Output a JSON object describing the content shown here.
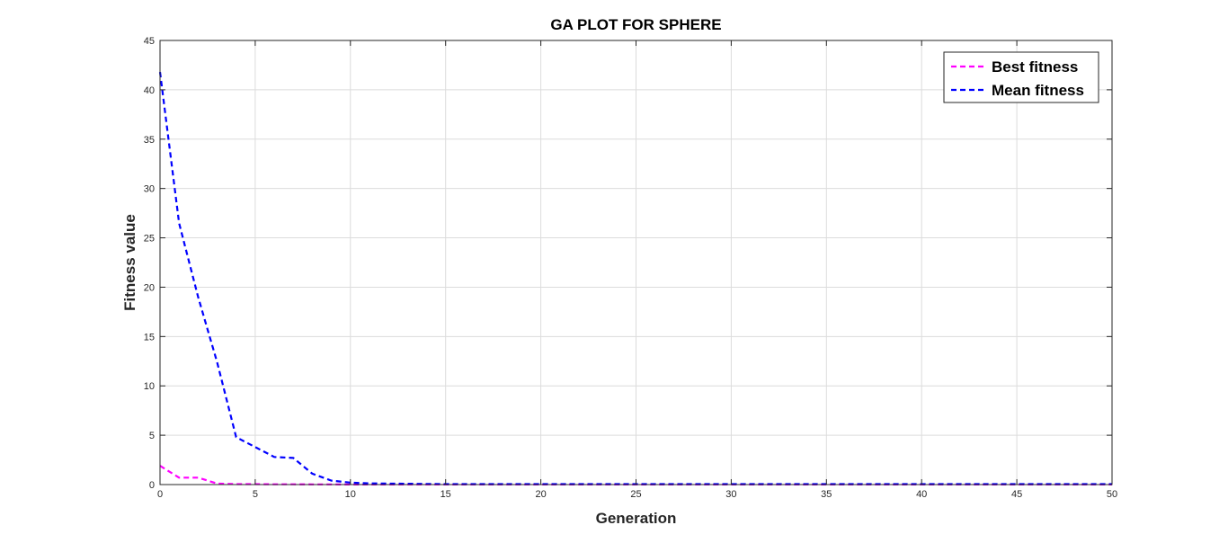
{
  "chart_data": {
    "type": "line",
    "title": "GA PLOT FOR SPHERE",
    "xlabel": "Generation",
    "ylabel": "Fitness value",
    "xlim": [
      0,
      50
    ],
    "ylim": [
      0,
      45
    ],
    "xticks": [
      0,
      5,
      10,
      15,
      20,
      25,
      30,
      35,
      40,
      45,
      50
    ],
    "yticks": [
      0,
      5,
      10,
      15,
      20,
      25,
      30,
      35,
      40,
      45
    ],
    "grid": true,
    "legend_position": "top-right",
    "x": [
      0,
      1,
      2,
      3,
      4,
      5,
      6,
      7,
      8,
      9,
      10,
      11,
      12,
      13,
      14,
      15,
      16,
      17,
      18,
      19,
      20,
      21,
      22,
      23,
      24,
      25,
      26,
      27,
      28,
      29,
      30,
      31,
      32,
      33,
      34,
      35,
      36,
      37,
      38,
      39,
      40,
      41,
      42,
      43,
      44,
      45,
      46,
      47,
      48,
      49,
      50
    ],
    "series": [
      {
        "name": "Best fitness",
        "color": "#ff00ff",
        "style": "dashed",
        "values": [
          1.9,
          0.7,
          0.7,
          0.1,
          0.05,
          0.05,
          0.03,
          0.03,
          0.02,
          0.02,
          0.01,
          0.01,
          0.01,
          0.01,
          0.01,
          0.01,
          0.01,
          0.01,
          0.01,
          0.01,
          0.01,
          0.01,
          0.01,
          0.01,
          0.01,
          0.01,
          0.01,
          0.01,
          0.01,
          0.01,
          0.01,
          0.01,
          0.01,
          0.01,
          0.01,
          0.01,
          0.01,
          0.01,
          0.01,
          0.01,
          0.01,
          0.01,
          0.01,
          0.01,
          0.01,
          0.01,
          0.01,
          0.01,
          0.01,
          0.01,
          0.01
        ]
      },
      {
        "name": "Mean fitness",
        "color": "#0000ff",
        "style": "dashed",
        "values": [
          41.8,
          26.5,
          19.0,
          12.4,
          4.8,
          3.8,
          2.8,
          2.7,
          1.1,
          0.4,
          0.2,
          0.12,
          0.1,
          0.08,
          0.06,
          0.05,
          0.05,
          0.05,
          0.05,
          0.05,
          0.05,
          0.05,
          0.05,
          0.05,
          0.05,
          0.05,
          0.05,
          0.05,
          0.05,
          0.05,
          0.05,
          0.05,
          0.05,
          0.05,
          0.05,
          0.05,
          0.05,
          0.05,
          0.05,
          0.05,
          0.05,
          0.05,
          0.05,
          0.05,
          0.05,
          0.05,
          0.05,
          0.05,
          0.05,
          0.05,
          0.05
        ]
      }
    ]
  }
}
